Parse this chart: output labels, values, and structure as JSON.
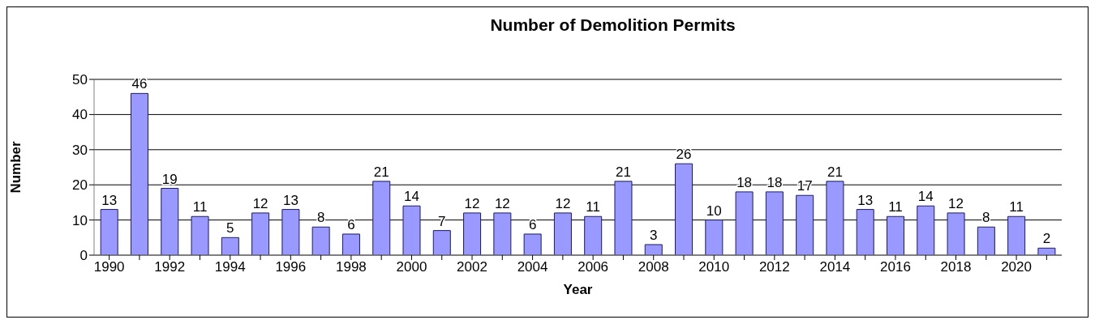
{
  "chart_data": {
    "type": "bar",
    "title": "Number of Demolition Permits",
    "xlabel": "Year",
    "ylabel": "Number",
    "categories": [
      "1990",
      null,
      "1992",
      null,
      "1994",
      null,
      "1996",
      null,
      "1998",
      null,
      "2000",
      null,
      "2002",
      null,
      "2004",
      null,
      "2006",
      null,
      "2008",
      null,
      "2010",
      null,
      "2012",
      null,
      "2014",
      null,
      "2016",
      null,
      "2018",
      null,
      "2020",
      null
    ],
    "values": [
      13,
      46,
      19,
      11,
      5,
      12,
      13,
      8,
      6,
      21,
      14,
      7,
      12,
      12,
      6,
      12,
      11,
      21,
      3,
      26,
      10,
      18,
      18,
      17,
      21,
      13,
      11,
      14,
      12,
      8,
      11,
      2
    ],
    "color": "#9999ff",
    "ylim": [
      0,
      50
    ],
    "yticks": [
      0,
      10,
      20,
      30,
      40,
      50
    ],
    "grid": "y",
    "data_labels": true
  }
}
